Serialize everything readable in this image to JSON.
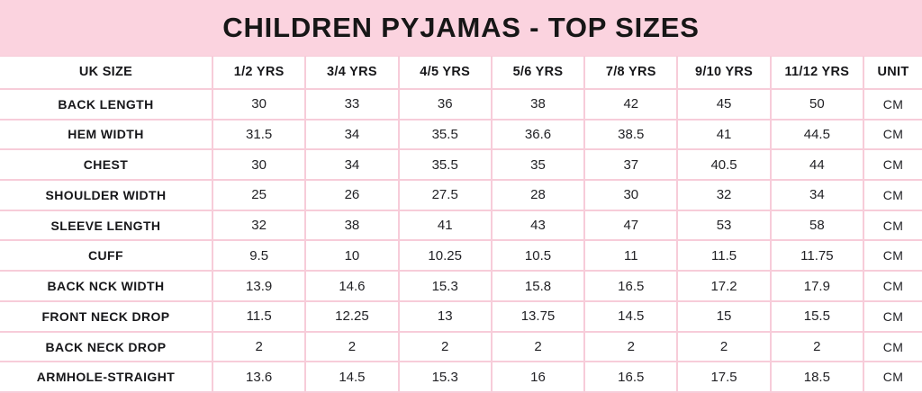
{
  "banner": {
    "title": "CHILDREN PYJAMAS - TOP SIZES"
  },
  "colors": {
    "banner_bg": "#fbd3df",
    "border": "#f7ccd9",
    "text": "#1d1d1f"
  },
  "chart_data": {
    "type": "table",
    "title": "CHILDREN PYJAMAS - TOP SIZES",
    "columns": [
      "UK SIZE",
      "1/2 YRS",
      "3/4 YRS",
      "4/5 YRS",
      "5/6 YRS",
      "7/8 YRS",
      "9/10 YRS",
      "11/12 YRS",
      "UNIT"
    ],
    "rows": [
      {
        "label": "BACK LENGTH",
        "values": [
          30,
          33,
          36,
          38,
          42,
          45,
          50
        ],
        "unit": "CM"
      },
      {
        "label": "HEM WIDTH",
        "values": [
          31.5,
          34,
          35.5,
          36.6,
          38.5,
          41,
          44.5
        ],
        "unit": "CM"
      },
      {
        "label": "CHEST",
        "values": [
          30,
          34,
          35.5,
          35,
          37,
          40.5,
          44
        ],
        "unit": "CM"
      },
      {
        "label": "SHOULDER WIDTH",
        "values": [
          25,
          26,
          27.5,
          28,
          30,
          32,
          34
        ],
        "unit": "CM"
      },
      {
        "label": "SLEEVE LENGTH",
        "values": [
          32,
          38,
          41,
          43,
          47,
          53,
          58
        ],
        "unit": "CM"
      },
      {
        "label": "CUFF",
        "values": [
          9.5,
          10,
          10.25,
          10.5,
          11,
          11.5,
          11.75
        ],
        "unit": "CM"
      },
      {
        "label": "BACK NCK WIDTH",
        "values": [
          13.9,
          14.6,
          15.3,
          15.8,
          16.5,
          17.2,
          17.9
        ],
        "unit": "CM"
      },
      {
        "label": "FRONT NECK DROP",
        "values": [
          11.5,
          12.25,
          13,
          13.75,
          14.5,
          15,
          15.5
        ],
        "unit": "CM"
      },
      {
        "label": "BACK NECK DROP",
        "values": [
          2,
          2,
          2,
          2,
          2,
          2,
          2
        ],
        "unit": "CM"
      },
      {
        "label": "ARMHOLE-STRAIGHT",
        "values": [
          13.6,
          14.5,
          15.3,
          16,
          16.5,
          17.5,
          18.5
        ],
        "unit": "CM"
      }
    ]
  }
}
